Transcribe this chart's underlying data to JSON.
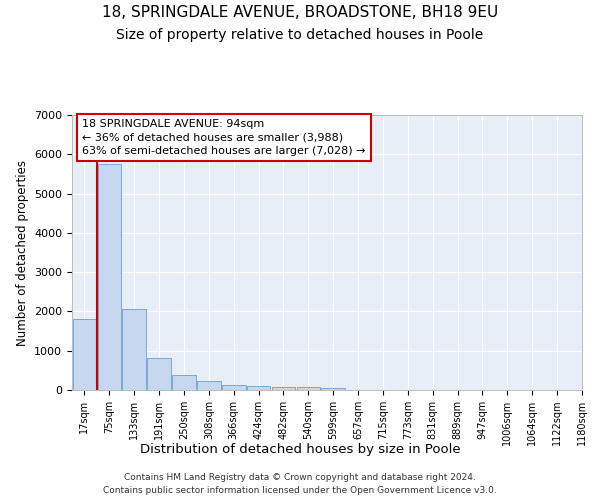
{
  "title1": "18, SPRINGDALE AVENUE, BROADSTONE, BH18 9EU",
  "title2": "Size of property relative to detached houses in Poole",
  "xlabel": "Distribution of detached houses by size in Poole",
  "ylabel": "Number of detached properties",
  "bar_values": [
    1800,
    5750,
    2050,
    820,
    370,
    230,
    130,
    110,
    85,
    70,
    55,
    0,
    0,
    0,
    0,
    0,
    0,
    0,
    0,
    0
  ],
  "bin_labels": [
    "17sqm",
    "75sqm",
    "133sqm",
    "191sqm",
    "250sqm",
    "308sqm",
    "366sqm",
    "424sqm",
    "482sqm",
    "540sqm",
    "599sqm",
    "657sqm",
    "715sqm",
    "773sqm",
    "831sqm",
    "889sqm",
    "947sqm",
    "1006sqm",
    "1064sqm",
    "1122sqm",
    "1180sqm"
  ],
  "bar_color": "#c5d8f0",
  "bar_edge_color": "#6aa0cc",
  "red_line_x": 0.5,
  "annotation_title": "18 SPRINGDALE AVENUE: 94sqm",
  "annotation_line1": "← 36% of detached houses are smaller (3,988)",
  "annotation_line2": "63% of semi-detached houses are larger (7,028) →",
  "annotation_box_facecolor": "#ffffff",
  "annotation_border_color": "#cc0000",
  "footer1": "Contains HM Land Registry data © Crown copyright and database right 2024.",
  "footer2": "Contains public sector information licensed under the Open Government Licence v3.0.",
  "ylim": [
    0,
    7000
  ],
  "yticks": [
    0,
    1000,
    2000,
    3000,
    4000,
    5000,
    6000,
    7000
  ],
  "fig_bg_color": "#ffffff",
  "axes_bg_color": "#e8eef8",
  "grid_color": "#ffffff",
  "title1_fontsize": 11,
  "title2_fontsize": 10
}
